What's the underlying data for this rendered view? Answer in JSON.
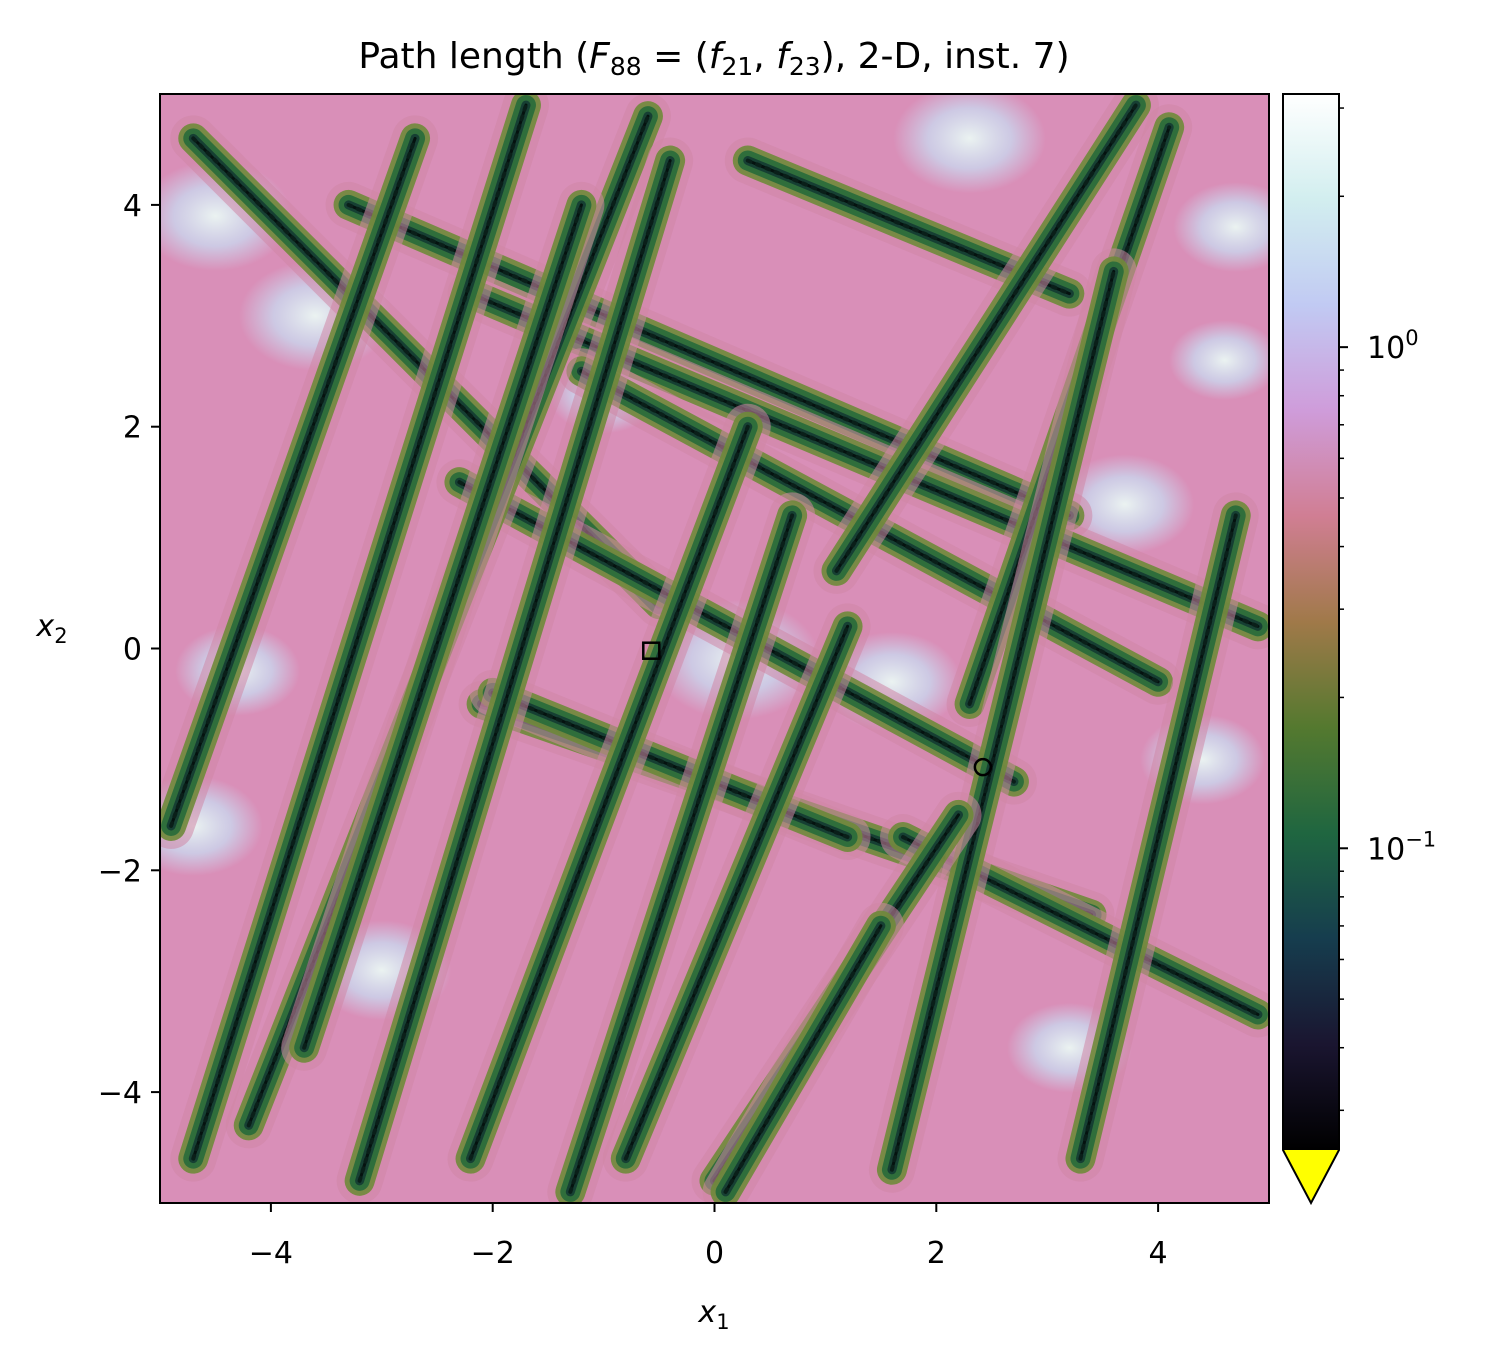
{
  "chart_data": {
    "type": "heatmap",
    "title": {
      "prefix": "Path length (",
      "F": "F",
      "F_sub": "88",
      "eq": " = (",
      "f1": "f",
      "f1_sub": "21",
      "comma": ", ",
      "f2": "f",
      "f2_sub": "23",
      "suffix": "), 2-D, inst. 7)"
    },
    "xlabel": {
      "base": "x",
      "sub": "1"
    },
    "ylabel": {
      "base": "x",
      "sub": "2"
    },
    "xlim": [
      -5,
      5
    ],
    "ylim": [
      -5,
      5
    ],
    "xticks": [
      {
        "value": -4,
        "label": "−4"
      },
      {
        "value": -2,
        "label": "−2"
      },
      {
        "value": 0,
        "label": "0"
      },
      {
        "value": 2,
        "label": "2"
      },
      {
        "value": 4,
        "label": "4"
      }
    ],
    "yticks": [
      {
        "value": 4,
        "label": "4"
      },
      {
        "value": 2,
        "label": "2"
      },
      {
        "value": 0,
        "label": "0"
      },
      {
        "value": -2,
        "label": "−2"
      },
      {
        "value": -4,
        "label": "−4"
      }
    ],
    "colorbar": {
      "scale": "log",
      "range": [
        0.025,
        3.2
      ],
      "colormap": "cubehelix",
      "extend_min_color": "#ffff00",
      "ticks": [
        {
          "value": 1,
          "base": "10",
          "exp": "0"
        },
        {
          "value": 0.1,
          "base": "10",
          "exp": "−1"
        }
      ]
    },
    "markers": [
      {
        "shape": "square",
        "x": -0.57,
        "y": -0.02
      },
      {
        "shape": "circle",
        "x": 2.42,
        "y": -1.07
      }
    ],
    "ridges": [
      {
        "x": [
          -4.7,
          -0.5
        ],
        "y": [
          4.6,
          0.4
        ]
      },
      {
        "x": [
          -3.3,
          3.2
        ],
        "y": [
          4.0,
          1.2
        ]
      },
      {
        "x": [
          -2.2,
          4.9
        ],
        "y": [
          3.2,
          0.2
        ]
      },
      {
        "x": [
          -2.3,
          2.7
        ],
        "y": [
          1.5,
          -1.2
        ]
      },
      {
        "x": [
          -2.1,
          3.4
        ],
        "y": [
          -0.5,
          -2.4
        ]
      },
      {
        "x": [
          -2.0,
          1.2
        ],
        "y": [
          -0.4,
          -1.7
        ]
      },
      {
        "x": [
          1.7,
          4.9
        ],
        "y": [
          -1.7,
          -3.3
        ]
      },
      {
        "x": [
          0.3,
          3.2
        ],
        "y": [
          4.4,
          3.2
        ]
      },
      {
        "x": [
          -1.2,
          4.0
        ],
        "y": [
          2.5,
          -0.3
        ]
      },
      {
        "x": [
          -4.7,
          -1.7
        ],
        "y": [
          -4.6,
          4.9
        ]
      },
      {
        "x": [
          -4.2,
          -0.6
        ],
        "y": [
          -4.3,
          4.8
        ]
      },
      {
        "x": [
          -3.7,
          -1.2
        ],
        "y": [
          -3.6,
          4.0
        ]
      },
      {
        "x": [
          -4.9,
          -2.7
        ],
        "y": [
          -1.6,
          4.6
        ]
      },
      {
        "x": [
          -3.2,
          -0.4
        ],
        "y": [
          -4.8,
          4.4
        ]
      },
      {
        "x": [
          -2.2,
          0.3
        ],
        "y": [
          -4.6,
          2.0
        ]
      },
      {
        "x": [
          -1.3,
          0.7
        ],
        "y": [
          -4.9,
          1.2
        ]
      },
      {
        "x": [
          -0.8,
          1.2
        ],
        "y": [
          -4.6,
          0.2
        ]
      },
      {
        "x": [
          1.1,
          3.8
        ],
        "y": [
          0.7,
          4.9
        ]
      },
      {
        "x": [
          2.3,
          4.1
        ],
        "y": [
          -0.5,
          4.7
        ]
      },
      {
        "x": [
          1.6,
          3.6
        ],
        "y": [
          -4.7,
          3.4
        ]
      },
      {
        "x": [
          0.0,
          2.2
        ],
        "y": [
          -4.8,
          -1.5
        ]
      },
      {
        "x": [
          3.3,
          4.7
        ],
        "y": [
          -4.6,
          1.2
        ]
      },
      {
        "x": [
          0.1,
          1.5
        ],
        "y": [
          -4.9,
          -2.5
        ]
      }
    ],
    "pale_regions": [
      {
        "x": -4.5,
        "y": 3.9,
        "r": 0.55
      },
      {
        "x": -3.6,
        "y": 3.0,
        "r": 0.55
      },
      {
        "x": 2.3,
        "y": 4.6,
        "r": 0.55
      },
      {
        "x": 4.7,
        "y": 3.8,
        "r": 0.45
      },
      {
        "x": 0.2,
        "y": -0.1,
        "r": 0.6
      },
      {
        "x": 1.6,
        "y": -0.3,
        "r": 0.5
      },
      {
        "x": 3.7,
        "y": 1.3,
        "r": 0.5
      },
      {
        "x": 4.4,
        "y": -1.0,
        "r": 0.45
      },
      {
        "x": -4.7,
        "y": -1.6,
        "r": 0.5
      },
      {
        "x": -3.0,
        "y": -2.9,
        "r": 0.5
      },
      {
        "x": -4.3,
        "y": -0.2,
        "r": 0.45
      },
      {
        "x": 3.2,
        "y": -3.6,
        "r": 0.45
      },
      {
        "x": 4.6,
        "y": 2.6,
        "r": 0.4
      },
      {
        "x": -1.0,
        "y": 2.3,
        "r": 0.4
      }
    ]
  }
}
